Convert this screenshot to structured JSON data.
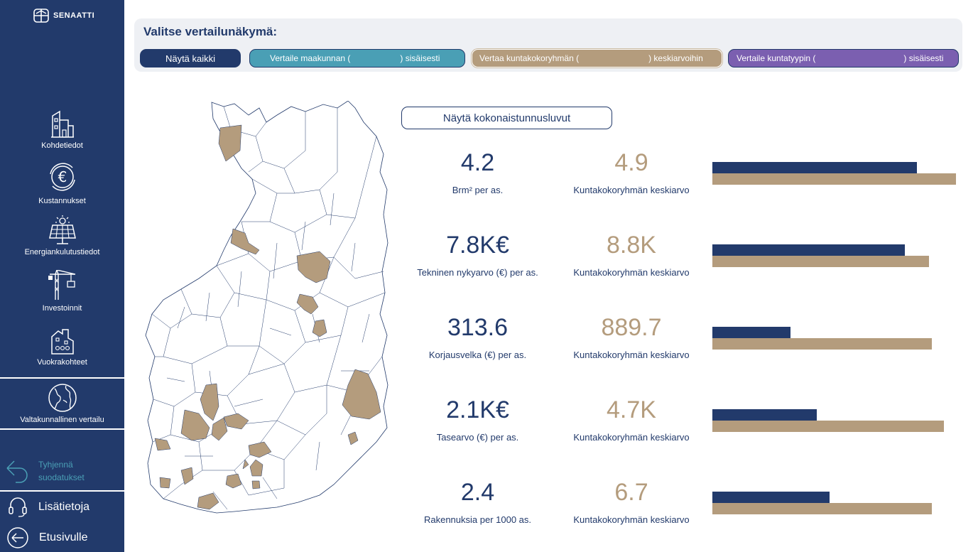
{
  "sidebar": {
    "logo_text": "SENAATTI",
    "items": [
      {
        "label": "Kohdetiedot",
        "icon": "building-icon"
      },
      {
        "label": "Kustannukset",
        "icon": "euro-cycle-icon"
      },
      {
        "label": "Energiankulutustiedot",
        "icon": "solar-panel-icon"
      },
      {
        "label": "Investoinnit",
        "icon": "crane-icon"
      },
      {
        "label": "Vuokrakohteet",
        "icon": "rental-building-icon"
      },
      {
        "label": "Valtakunnallinen vertailu",
        "icon": "globe-icon"
      }
    ],
    "clear_filters_line1": "Tyhjennä",
    "clear_filters_line2": "suodatukset",
    "info_label": "Lisätietoja",
    "home_label": "Etusivulle"
  },
  "filter": {
    "title": "Valitse vertailunäkymä:",
    "btn_all": "Näytä kaikki",
    "btn_maakunta_pre": "Vertaile maakunnan (",
    "btn_maakunta_post": ") sisäisesti",
    "btn_kunta_pre": "Vertaa kuntakokoryhmän (",
    "btn_kunta_post": ") keskiarvoihin",
    "btn_tyyppi_pre": "Vertaile kuntatyypin (",
    "btn_tyyppi_post": ") sisäisesti"
  },
  "totals_button": "Näytä kokonaistunnusluvut",
  "kpis": [
    {
      "value": "4.2",
      "label": "Brm² per as.",
      "cmp_value": "4.9",
      "cmp_label": "Kuntakokoryhmän keskiarvo",
      "own_ratio": 0.84,
      "avg_ratio": 1.0
    },
    {
      "value": "7.8K€",
      "label": "Tekninen nykyarvo (€) per as.",
      "cmp_value": "8.8K",
      "cmp_label": "Kuntakokoryhmän keskiarvo",
      "own_ratio": 0.79,
      "avg_ratio": 0.89
    },
    {
      "value": "313.6",
      "label": "Korjausvelka (€) per as.",
      "cmp_value": "889.7",
      "cmp_label": "Kuntakokoryhmän keskiarvo",
      "own_ratio": 0.32,
      "avg_ratio": 0.9
    },
    {
      "value": "2.1K€",
      "label": "Tasearvo (€) per as.",
      "cmp_value": "4.7K",
      "cmp_label": "Kuntakokoryhmän keskiarvo",
      "own_ratio": 0.43,
      "avg_ratio": 0.95
    },
    {
      "value": "2.4",
      "label": "Rakennuksia per 1000 as.",
      "cmp_value": "6.7",
      "cmp_label": "Kuntakokoryhmän keskiarvo",
      "own_ratio": 0.48,
      "avg_ratio": 0.9
    }
  ],
  "colors": {
    "navy": "#223a6b",
    "tan": "#b49c7d",
    "teal": "#4a9fb5",
    "purple": "#7b5fb0"
  }
}
